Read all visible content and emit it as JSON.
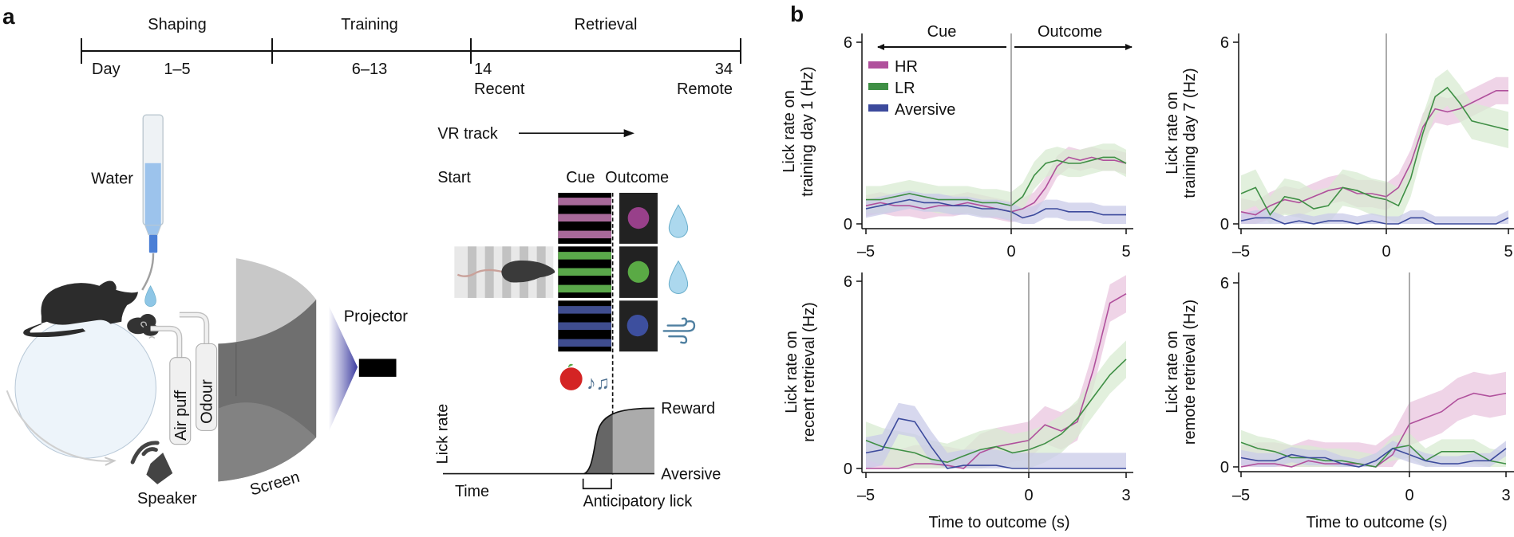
{
  "panel_labels": {
    "a": "a",
    "b": "b"
  },
  "timeline": {
    "phases": [
      "Shaping",
      "Training",
      "Retrieval"
    ],
    "day_label": "Day",
    "day_ranges": [
      "1–5",
      "6–13"
    ],
    "retrieval_days": [
      {
        "day": "14",
        "label": "Recent"
      },
      {
        "day": "34",
        "label": "Remote"
      }
    ]
  },
  "apparatus": {
    "water": "Water",
    "air_puff": "Air puff",
    "odour": "Odour",
    "speaker": "Speaker",
    "screen": "Screen",
    "projector": "Projector",
    "icons": [
      "water-bottle-icon",
      "mouse-icon",
      "ball-icon",
      "odour-cloud-icon",
      "speaker-icon",
      "screen-icon",
      "projector-icon"
    ]
  },
  "task": {
    "vr_track": "VR track",
    "start": "Start",
    "cue": "Cue",
    "outcome": "Outcome",
    "cue_colors": {
      "HR": "#a8699a",
      "LR": "#5aa84a",
      "Aversive": "#3f4d8f"
    },
    "outcome_icons": [
      "water-drop-icon",
      "water-drop-icon",
      "air-puff-icon"
    ],
    "lick_rate": "Lick rate",
    "time": "Time",
    "reward": "Reward",
    "aversive": "Aversive",
    "anticipatory_lick": "Anticipatory lick"
  },
  "chart_header": {
    "cue": "Cue",
    "outcome": "Outcome"
  },
  "colors": {
    "HR": {
      "line": "#b0509c",
      "band": "#e9c6df"
    },
    "LR": {
      "line": "#3f8f45",
      "band": "#d8ebd2"
    },
    "Aversive": {
      "line": "#3c4a9c",
      "band": "#c9cbe8"
    }
  },
  "chart_data": [
    {
      "type": "line",
      "ylabel": [
        "Lick rate on",
        "training day 1 (Hz)"
      ],
      "xlabel": "",
      "xticks": [
        -5,
        0,
        5
      ],
      "xtick_labels": [
        "–5",
        "0",
        "5"
      ],
      "yticks": [
        0,
        6
      ],
      "ylim": [
        0,
        6
      ],
      "xlim": [
        -5,
        5
      ],
      "vline": 0,
      "legend": "top-left",
      "grid": false,
      "x": [
        -5,
        -4.5,
        -4,
        -3.5,
        -3,
        -2.5,
        -2,
        -1.5,
        -1,
        -0.5,
        0,
        0.5,
        1,
        1.5,
        2,
        2.5,
        3,
        3.5,
        4,
        4.5,
        5
      ],
      "series": [
        {
          "name": "HR",
          "sem": 0.35,
          "values": [
            0.6,
            0.7,
            0.6,
            0.6,
            0.5,
            0.6,
            0.6,
            0.7,
            0.6,
            0.5,
            0.4,
            0.5,
            0.7,
            1.2,
            1.9,
            2.2,
            2.1,
            2.2,
            2.1,
            2.1,
            2.0
          ]
        },
        {
          "name": "LR",
          "sem": 0.45,
          "values": [
            0.8,
            0.8,
            0.9,
            1.0,
            0.9,
            0.8,
            0.8,
            0.8,
            0.7,
            0.7,
            0.6,
            0.9,
            1.6,
            2.0,
            2.1,
            2.0,
            2.0,
            2.1,
            2.2,
            2.2,
            2.0
          ]
        },
        {
          "name": "Aversive",
          "sem": 0.3,
          "values": [
            0.5,
            0.6,
            0.7,
            0.8,
            0.7,
            0.7,
            0.6,
            0.6,
            0.5,
            0.5,
            0.4,
            0.2,
            0.3,
            0.5,
            0.5,
            0.4,
            0.4,
            0.4,
            0.3,
            0.3,
            0.3
          ]
        }
      ]
    },
    {
      "type": "line",
      "ylabel": [
        "Lick rate on",
        "training day 7 (Hz)"
      ],
      "xlabel": "",
      "xticks": [
        -5,
        0,
        5
      ],
      "xtick_labels": [
        "–5",
        "0",
        "5"
      ],
      "yticks": [
        0,
        6
      ],
      "ylim": [
        0,
        6
      ],
      "xlim": [
        -5,
        5
      ],
      "vline": 0,
      "grid": false,
      "x": [
        -5,
        -4.5,
        -4,
        -3.5,
        -3,
        -2.5,
        -2,
        -1.5,
        -1,
        -0.5,
        0,
        0.5,
        1,
        1.5,
        2,
        2.5,
        3,
        3.5,
        4,
        4.5,
        5
      ],
      "series": [
        {
          "name": "HR",
          "sem": 0.45,
          "values": [
            0.4,
            0.3,
            0.6,
            0.8,
            0.7,
            0.9,
            1.1,
            1.2,
            1.0,
            1.0,
            0.9,
            1.2,
            2.0,
            3.2,
            3.8,
            3.7,
            3.8,
            4.0,
            4.2,
            4.4,
            4.4
          ]
        },
        {
          "name": "LR",
          "sem": 0.6,
          "values": [
            1.0,
            1.2,
            0.3,
            0.9,
            0.8,
            0.5,
            0.6,
            1.2,
            1.1,
            0.9,
            0.8,
            0.6,
            1.5,
            3.0,
            4.2,
            4.5,
            4.0,
            3.4,
            3.3,
            3.2,
            3.1
          ]
        },
        {
          "name": "Aversive",
          "sem": 0.25,
          "values": [
            0.1,
            0.2,
            0.2,
            0.0,
            0.1,
            0.0,
            0.1,
            0.1,
            0.0,
            0.1,
            0.0,
            0.0,
            0.2,
            0.2,
            0.0,
            0.0,
            0.0,
            0.0,
            0.0,
            0.0,
            0.2
          ]
        }
      ]
    },
    {
      "type": "line",
      "ylabel": [
        "Lick rate on",
        "recent retrieval (Hz)"
      ],
      "xlabel": "Time to outcome (s)",
      "xticks": [
        -5,
        0,
        3
      ],
      "xtick_labels": [
        "–5",
        "0",
        "3"
      ],
      "yticks": [
        0,
        6
      ],
      "ylim": [
        0,
        6
      ],
      "xlim": [
        -5,
        3
      ],
      "vline": 0,
      "grid": false,
      "x": [
        -5,
        -4.5,
        -4,
        -3.5,
        -3,
        -2.5,
        -2,
        -1.5,
        -1,
        -0.5,
        0,
        0.5,
        1,
        1.5,
        2,
        2.5,
        3
      ],
      "series": [
        {
          "name": "HR",
          "sem": 0.6,
          "values": [
            0,
            0,
            0,
            0.15,
            0.15,
            0.1,
            0,
            0.5,
            0.7,
            0.8,
            0.9,
            1.4,
            1.2,
            1.5,
            3.2,
            5.3,
            5.6
          ]
        },
        {
          "name": "LR",
          "sem": 0.6,
          "values": [
            0.9,
            0.7,
            0.6,
            0.5,
            0.3,
            0.2,
            0.4,
            0.6,
            0.7,
            0.5,
            0.6,
            0.8,
            1.1,
            1.6,
            2.3,
            3.0,
            3.5
          ]
        },
        {
          "name": "Aversive",
          "sem": 0.5,
          "values": [
            0.5,
            0.6,
            1.6,
            1.5,
            0.7,
            0,
            0.1,
            0.1,
            0.1,
            0,
            0,
            0,
            0,
            0,
            0,
            0,
            0
          ]
        }
      ]
    },
    {
      "type": "line",
      "ylabel": [
        "Lick rate on",
        "remote retrieval (Hz)"
      ],
      "xlabel": "Time to outcome (s)",
      "xticks": [
        -5,
        0,
        3
      ],
      "xtick_labels": [
        "–5",
        "0",
        "3"
      ],
      "yticks": [
        0,
        6
      ],
      "ylim": [
        0,
        6
      ],
      "xlim": [
        -5,
        3
      ],
      "vline": 0,
      "grid": false,
      "x": [
        -5,
        -4.5,
        -4,
        -3.5,
        -3,
        -2.5,
        -2,
        -1.5,
        -1,
        -0.5,
        0,
        0.5,
        1,
        1.5,
        2,
        2.5,
        3
      ],
      "series": [
        {
          "name": "HR",
          "sem": 0.7,
          "values": [
            0,
            0.1,
            0.1,
            0,
            0.2,
            0.1,
            0.1,
            0.1,
            0,
            0.4,
            1.4,
            1.6,
            1.8,
            2.2,
            2.4,
            2.3,
            2.4
          ]
        },
        {
          "name": "LR",
          "sem": 0.4,
          "values": [
            0.8,
            0.6,
            0.5,
            0.3,
            0.3,
            0.2,
            0.2,
            0.1,
            0,
            0.6,
            0.7,
            0.2,
            0.5,
            0.5,
            0.5,
            0.2,
            0.1
          ]
        },
        {
          "name": "Aversive",
          "sem": 0.25,
          "values": [
            0.3,
            0.2,
            0.2,
            0.4,
            0.3,
            0.3,
            0.1,
            0.0,
            0.2,
            0.6,
            0.4,
            0.2,
            0.1,
            0.1,
            0.2,
            0.2,
            0.6
          ]
        }
      ]
    }
  ]
}
